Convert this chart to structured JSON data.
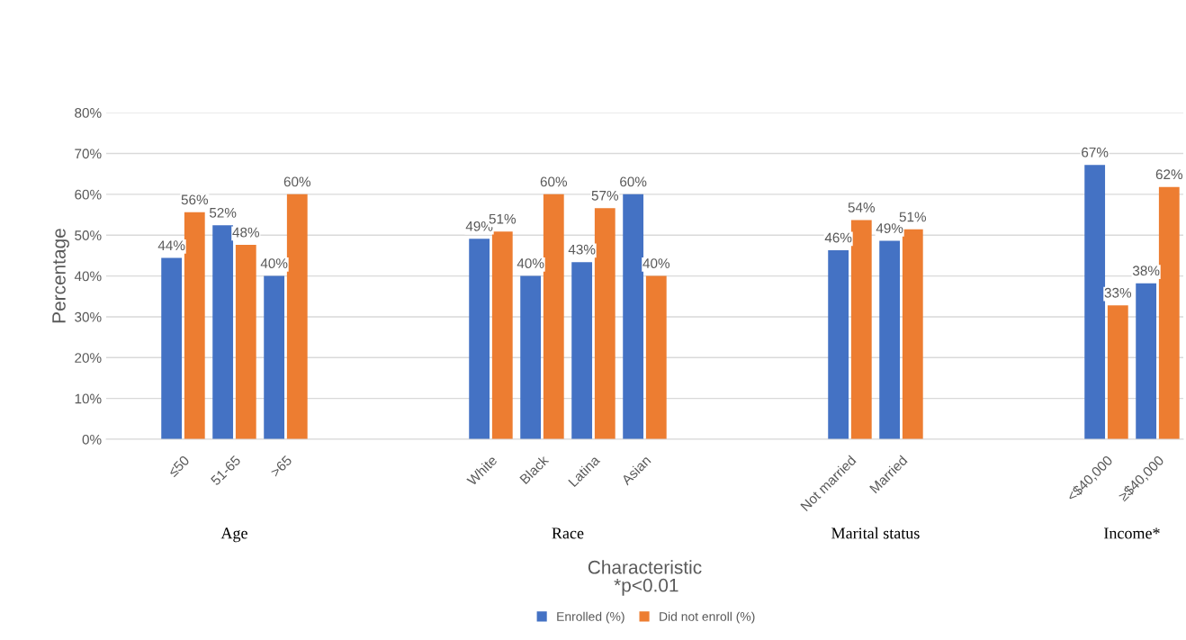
{
  "chart_data": {
    "type": "bar",
    "xlabel": "Characteristic",
    "ylabel": "Percentage",
    "categories": [
      null,
      "≤50",
      "51-65",
      ">65",
      null,
      null,
      null,
      "White",
      "Black",
      "Latina",
      "Asian",
      null,
      null,
      null,
      "Not married",
      "Married",
      null,
      null,
      null,
      "<$40,000",
      "≥$40,000"
    ],
    "series": [
      {
        "name": "Enrolled (%)",
        "color": "#4472c4",
        "values": [
          null,
          44.4,
          52.4,
          40,
          null,
          null,
          null,
          49.1,
          40,
          43.4,
          60,
          null,
          null,
          null,
          46.3,
          48.6,
          null,
          null,
          null,
          67.2,
          38.2
        ],
        "value_labels": [
          null,
          "44%",
          "52%",
          "40%",
          null,
          null,
          null,
          "49%",
          "40%",
          "43%",
          "60%",
          null,
          null,
          null,
          "46%",
          "49%",
          null,
          null,
          null,
          "67%",
          "38%"
        ]
      },
      {
        "name": "Did not enroll (%)",
        "color": "#ed7d31",
        "values": [
          null,
          55.6,
          47.6,
          60,
          null,
          null,
          null,
          50.9,
          60,
          56.6,
          40,
          null,
          null,
          null,
          53.7,
          51.4,
          null,
          null,
          null,
          32.8,
          61.8
        ],
        "value_labels": [
          null,
          "56%",
          "48%",
          "60%",
          null,
          null,
          null,
          "51%",
          "60%",
          "57%",
          "40%",
          null,
          null,
          null,
          "54%",
          "51%",
          null,
          null,
          null,
          "33%",
          "62%"
        ]
      }
    ],
    "ylim": [
      0,
      80
    ],
    "yticks": [
      {
        "value": 0,
        "label": "0%"
      },
      {
        "value": 10,
        "label": "10%"
      },
      {
        "value": 20,
        "label": "20%"
      },
      {
        "value": 30,
        "label": "30%"
      },
      {
        "value": 40,
        "label": "40%"
      },
      {
        "value": 50,
        "label": "50%"
      },
      {
        "value": 60,
        "label": "60%"
      },
      {
        "value": 70,
        "label": "70%"
      },
      {
        "value": 80,
        "label": "80%"
      }
    ],
    "annotations": [
      "Age",
      "Race",
      "Marital status",
      "Income*",
      "*p<0.01"
    ],
    "grid": "y",
    "legend": "bottom"
  }
}
